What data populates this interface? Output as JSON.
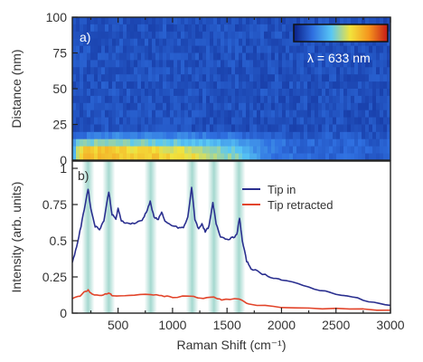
{
  "chart_data": [
    {
      "panel_label": "a)",
      "type": "heatmap",
      "ylabel": "Distance (nm)",
      "ylim": [
        0,
        100
      ],
      "yticks": [
        "0",
        "25",
        "50",
        "75",
        "100"
      ],
      "x_range": [
        80,
        3000
      ],
      "colorbar_label": "λ = 633 nm",
      "colormap": [
        "#0a1f86",
        "#2f6fe0",
        "#58c7f5",
        "#f2e33c",
        "#f5941d",
        "#c51a17"
      ],
      "background_color": "#223c9c",
      "rows": [
        {
          "distance_range": [
            0,
            5
          ],
          "intensity_profile": [
            [
              80,
              0.28
            ],
            [
              150,
              0.64
            ],
            [
              200,
              0.74
            ],
            [
              300,
              0.68
            ],
            [
              420,
              0.7
            ],
            [
              600,
              0.66
            ],
            [
              800,
              0.67
            ],
            [
              1000,
              0.62
            ],
            [
              1200,
              0.6
            ],
            [
              1400,
              0.5
            ],
            [
              1600,
              0.45
            ],
            [
              1800,
              0.28
            ],
            [
              2000,
              0.2
            ],
            [
              3000,
              0.15
            ]
          ]
        },
        {
          "distance_range": [
            5,
            10
          ],
          "intensity_profile": [
            [
              80,
              0.3
            ],
            [
              150,
              0.6
            ],
            [
              200,
              0.7
            ],
            [
              300,
              0.65
            ],
            [
              420,
              0.68
            ],
            [
              600,
              0.62
            ],
            [
              800,
              0.63
            ],
            [
              1000,
              0.58
            ],
            [
              1200,
              0.55
            ],
            [
              1400,
              0.47
            ],
            [
              1600,
              0.42
            ],
            [
              1800,
              0.26
            ],
            [
              2000,
              0.19
            ],
            [
              3000,
              0.15
            ]
          ]
        },
        {
          "distance_range": [
            10,
            15
          ],
          "intensity_profile": [
            [
              80,
              0.25
            ],
            [
              150,
              0.45
            ],
            [
              300,
              0.46
            ],
            [
              600,
              0.45
            ],
            [
              1000,
              0.42
            ],
            [
              1400,
              0.36
            ],
            [
              1700,
              0.3
            ],
            [
              2000,
              0.2
            ],
            [
              3000,
              0.15
            ]
          ]
        },
        {
          "distance_range": [
            15,
            20
          ],
          "intensity_profile": [
            [
              80,
              0.18
            ],
            [
              400,
              0.25
            ],
            [
              1000,
              0.24
            ],
            [
              1600,
              0.2
            ],
            [
              2000,
              0.16
            ],
            [
              3000,
              0.13
            ]
          ]
        },
        {
          "distance_range": [
            20,
            100
          ],
          "intensity_profile": [
            [
              80,
              0.13
            ],
            [
              3000,
              0.12
            ]
          ]
        }
      ]
    },
    {
      "panel_label": "b)",
      "type": "line",
      "xlabel": "Raman Shift (cm⁻¹)",
      "ylabel": "Intensity (arb. units)",
      "xlim": [
        80,
        3000
      ],
      "ylim": [
        0,
        1.05
      ],
      "xticks": [
        "500",
        "1000",
        "1500",
        "2000",
        "2500",
        "3000"
      ],
      "yticks": [
        "0",
        "0.25",
        "0.5",
        "0.75",
        "1"
      ],
      "highlight_bands": [
        225,
        415,
        800,
        1180,
        1380,
        1610
      ],
      "highlight_color": "#5ab8a8",
      "series": [
        {
          "name": "Tip in",
          "color": "#2a2f8f",
          "points": [
            [
              80,
              0.35
            ],
            [
              120,
              0.46
            ],
            [
              160,
              0.6
            ],
            [
              200,
              0.76
            ],
            [
              225,
              0.86
            ],
            [
              250,
              0.72
            ],
            [
              290,
              0.6
            ],
            [
              330,
              0.58
            ],
            [
              370,
              0.64
            ],
            [
              415,
              0.84
            ],
            [
              445,
              0.68
            ],
            [
              480,
              0.65
            ],
            [
              500,
              0.72
            ],
            [
              530,
              0.64
            ],
            [
              580,
              0.62
            ],
            [
              650,
              0.62
            ],
            [
              720,
              0.64
            ],
            [
              760,
              0.7
            ],
            [
              795,
              0.77
            ],
            [
              830,
              0.66
            ],
            [
              870,
              0.65
            ],
            [
              900,
              0.7
            ],
            [
              930,
              0.63
            ],
            [
              980,
              0.61
            ],
            [
              1050,
              0.59
            ],
            [
              1100,
              0.59
            ],
            [
              1140,
              0.66
            ],
            [
              1175,
              0.87
            ],
            [
              1205,
              0.65
            ],
            [
              1240,
              0.58
            ],
            [
              1270,
              0.62
            ],
            [
              1300,
              0.56
            ],
            [
              1335,
              0.6
            ],
            [
              1370,
              0.76
            ],
            [
              1400,
              0.62
            ],
            [
              1440,
              0.53
            ],
            [
              1500,
              0.51
            ],
            [
              1550,
              0.52
            ],
            [
              1590,
              0.54
            ],
            [
              1615,
              0.66
            ],
            [
              1640,
              0.5
            ],
            [
              1680,
              0.36
            ],
            [
              1720,
              0.31
            ],
            [
              1800,
              0.28
            ],
            [
              1900,
              0.25
            ],
            [
              2000,
              0.23
            ],
            [
              2200,
              0.19
            ],
            [
              2400,
              0.15
            ],
            [
              2600,
              0.12
            ],
            [
              2800,
              0.08
            ],
            [
              3000,
              0.05
            ]
          ]
        },
        {
          "name": "Tip retracted",
          "color": "#e2442a",
          "points": [
            [
              80,
              0.1
            ],
            [
              150,
              0.12
            ],
            [
              200,
              0.15
            ],
            [
              225,
              0.16
            ],
            [
              260,
              0.13
            ],
            [
              350,
              0.12
            ],
            [
              415,
              0.14
            ],
            [
              450,
              0.12
            ],
            [
              600,
              0.12
            ],
            [
              800,
              0.13
            ],
            [
              900,
              0.12
            ],
            [
              1000,
              0.11
            ],
            [
              1180,
              0.12
            ],
            [
              1250,
              0.1
            ],
            [
              1380,
              0.11
            ],
            [
              1450,
              0.09
            ],
            [
              1610,
              0.1
            ],
            [
              1700,
              0.06
            ],
            [
              2000,
              0.04
            ],
            [
              2500,
              0.03
            ],
            [
              3000,
              0.02
            ]
          ]
        }
      ],
      "legend_position": "top-right"
    }
  ]
}
